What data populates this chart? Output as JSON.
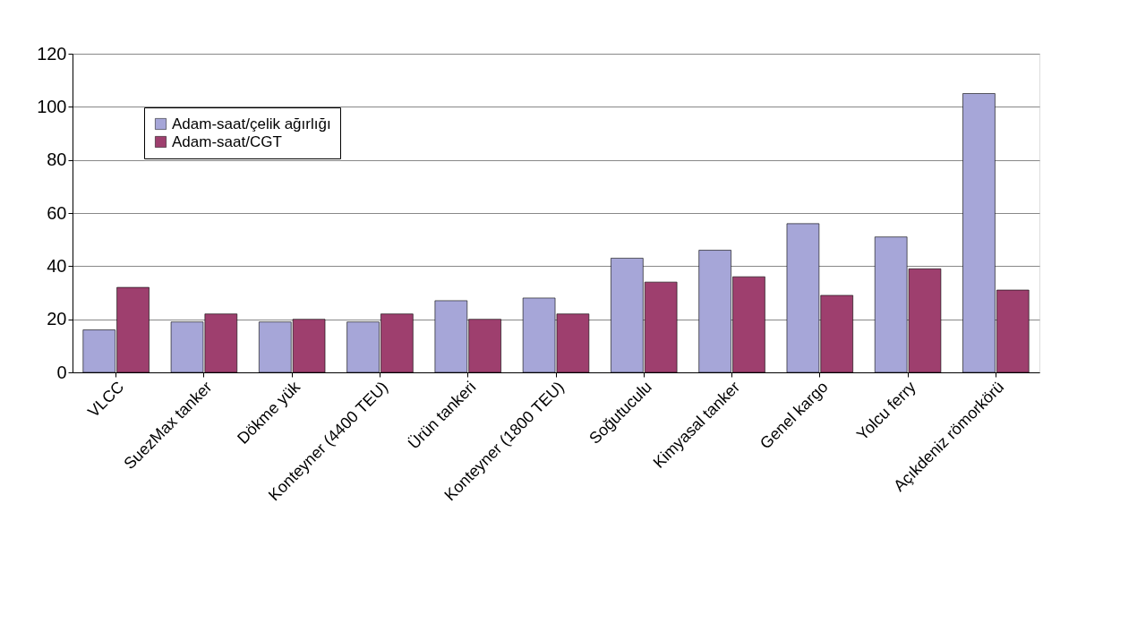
{
  "chart_data": {
    "type": "bar",
    "categories": [
      "VLCC",
      "SuezMax tanker",
      "Dökme yük",
      "Konteyner (4400 TEU)",
      "Ürün tankeri",
      "Konteyner (1800 TEU)",
      "Soğutuculu",
      "Kimyasal tanker",
      "Genel kargo",
      "Yolcu ferry",
      "Açıkdeniz römorkörü"
    ],
    "series": [
      {
        "name": "Adam-saat/çelik ağırlığı",
        "color": "#a6a6d8",
        "values": [
          16,
          19,
          19,
          19,
          27,
          28,
          43,
          46,
          56,
          51,
          105
        ]
      },
      {
        "name": "Adam-saat/CGT",
        "color": "#9e3f6e",
        "values": [
          32,
          22,
          20,
          22,
          20,
          22,
          34,
          36,
          29,
          39,
          31
        ]
      }
    ],
    "ylim": [
      0,
      120
    ],
    "yticks": [
      0,
      20,
      40,
      60,
      80,
      100,
      120
    ],
    "grid": "y",
    "legend": "top left"
  }
}
